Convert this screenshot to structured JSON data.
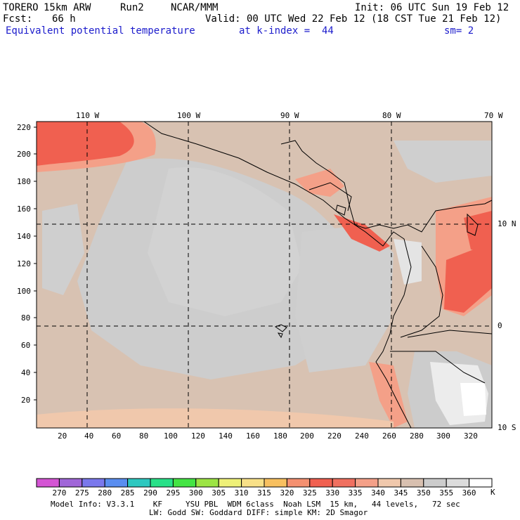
{
  "header": {
    "model": "TORERO",
    "resolution": "15km ARW",
    "run": "Run2",
    "org": "NCAR/MMM",
    "init": "Init: 06 UTC Sun 19 Feb 12",
    "fcst_label": "Fcst:",
    "fcst_value": "66 h",
    "valid": "Valid: 00 UTC Wed 22 Feb 12 (18 CST Tue 21 Feb 12)",
    "field": "Equivalent potential temperature",
    "level": "at k-index =  44",
    "smoothing": "sm= 2"
  },
  "map": {
    "lon_labels": [
      "110 W",
      "100 W",
      "90 W",
      "80 W",
      "70 W"
    ],
    "lat_labels": [
      "10 N",
      "0",
      "10 S"
    ],
    "y_grid_labels": [
      "220",
      "200",
      "180",
      "160",
      "140",
      "120",
      "100",
      "80",
      "60",
      "40",
      "20"
    ],
    "x_grid_labels": [
      "20",
      "40",
      "60",
      "80",
      "100",
      "120",
      "140",
      "160",
      "180",
      "200",
      "220",
      "240",
      "260",
      "280",
      "300",
      "320"
    ]
  },
  "colorbar": {
    "unit": "K",
    "labels": [
      "270",
      "275",
      "280",
      "285",
      "290",
      "295",
      "300",
      "305",
      "310",
      "315",
      "320",
      "325",
      "330",
      "335",
      "340",
      "345",
      "350",
      "355",
      "360"
    ],
    "colors": [
      "#d455d4",
      "#a066d8",
      "#7a78ec",
      "#5a8ef0",
      "#2ec8c0",
      "#28e088",
      "#44e444",
      "#9ce444",
      "#eef078",
      "#f8e088",
      "#f8c060",
      "#f49070",
      "#f06050",
      "#f07060",
      "#f4a088",
      "#f0c8ac",
      "#d8c0b0",
      "#cccccc",
      "#dcdcdc",
      "#ffffff"
    ]
  },
  "footer": {
    "line1": "Model Info: V3.3.1    KF     YSU PBL  WDM 6class  Noah LSM  15 km,   44 levels,   72 sec",
    "line2": "LW: Godd SW: Goddard DIFF: simple KM: 2D Smagor"
  }
}
